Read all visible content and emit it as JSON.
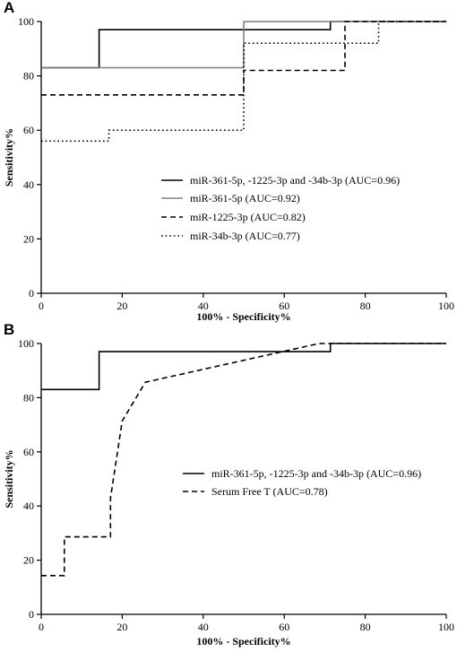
{
  "chart_data": [
    {
      "type": "line",
      "panel_label": "A",
      "xlabel": "100% - Specificity%",
      "ylabel": "Sensitivity%",
      "xlim": [
        0,
        100
      ],
      "ylim": [
        0,
        100
      ],
      "x_ticks": [
        0,
        20,
        40,
        60,
        80,
        100
      ],
      "y_ticks": [
        0,
        20,
        40,
        60,
        80,
        100
      ],
      "legend_position": "center-right",
      "series": [
        {
          "name": "miR-361-5p, -1225-3p and -34b-3p (AUC=0.96)",
          "style": "solid",
          "color": "#000000",
          "x": [
            0,
            14.3,
            14.3,
            71.4,
            71.4,
            100
          ],
          "y": [
            83,
            83,
            97,
            97,
            100,
            100
          ]
        },
        {
          "name": "miR-361-5p (AUC=0.92)",
          "style": "solid",
          "color": "#808080",
          "x": [
            0,
            50,
            50,
            100
          ],
          "y": [
            83,
            83,
            100,
            100
          ]
        },
        {
          "name": "miR-1225-3p (AUC=0.82)",
          "style": "dashed",
          "color": "#000000",
          "x": [
            0,
            50,
            50,
            75,
            75,
            100
          ],
          "y": [
            73,
            73,
            82,
            82,
            100,
            100
          ]
        },
        {
          "name": "miR-34b-3p (AUC=0.77)",
          "style": "dotted",
          "color": "#000000",
          "x": [
            0,
            16.7,
            16.7,
            50,
            50,
            83.3,
            83.3,
            100
          ],
          "y": [
            56,
            56,
            60,
            60,
            92,
            92,
            100,
            100
          ]
        }
      ]
    },
    {
      "type": "line",
      "panel_label": "B",
      "xlabel": "100% - Specificity%",
      "ylabel": "Sensitivity%",
      "xlim": [
        0,
        100
      ],
      "ylim": [
        0,
        100
      ],
      "x_ticks": [
        0,
        20,
        40,
        60,
        80,
        100
      ],
      "y_ticks": [
        0,
        20,
        40,
        60,
        80,
        100
      ],
      "legend_position": "center-right",
      "series": [
        {
          "name": "miR-361-5p, -1225-3p and -34b-3p (AUC=0.96)",
          "style": "solid",
          "color": "#000000",
          "x": [
            0,
            14.3,
            14.3,
            71.4,
            71.4,
            100
          ],
          "y": [
            83,
            83,
            97,
            97,
            100,
            100
          ]
        },
        {
          "name": "Serum Free T (AUC=0.78)",
          "style": "dashed",
          "color": "#000000",
          "x": [
            0,
            5.7,
            5.7,
            17.1,
            17.1,
            20,
            20,
            25.7,
            25.7,
            68.6,
            68.6,
            100
          ],
          "y": [
            14.3,
            14.3,
            28.6,
            28.6,
            42.9,
            71.4,
            71.4,
            85.7,
            85.7,
            100,
            100,
            100
          ]
        }
      ]
    }
  ]
}
